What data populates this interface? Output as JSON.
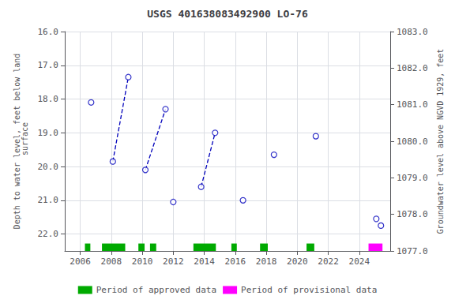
{
  "chart_data": {
    "type": "scatter",
    "title": "USGS 401638083492900 LO-76",
    "ylabel": "Depth to water level, feet below land\n surface",
    "y2label": "Groundwater level above NGVD 1929, feet",
    "x": [
      2006.7,
      2008.1,
      2009.1,
      2010.2,
      2011.5,
      2012.0,
      2013.8,
      2014.7,
      2016.5,
      2018.5,
      2021.2,
      2025.1,
      2025.4
    ],
    "xlim": [
      2005,
      2026
    ],
    "xticks": [
      2006,
      2008,
      2010,
      2012,
      2014,
      2016,
      2018,
      2020,
      2022,
      2024
    ],
    "ylim": [
      22.5,
      16.0
    ],
    "yticks": [
      {
        "value": 16.0,
        "label": "16.0"
      },
      {
        "value": 17.0,
        "label": "17.0"
      },
      {
        "value": 18.0,
        "label": "18.0"
      },
      {
        "value": 19.0,
        "label": "19.0"
      },
      {
        "value": 20.0,
        "label": "20.0"
      },
      {
        "value": 21.0,
        "label": "21.0"
      },
      {
        "value": 22.0,
        "label": "22.0"
      }
    ],
    "y2lim": [
      1077.0,
      1083.0
    ],
    "y2ticks": [
      {
        "value": 1077.0,
        "label": "1077.0"
      },
      {
        "value": 1078.0,
        "label": "1078.0"
      },
      {
        "value": 1079.0,
        "label": "1079.0"
      },
      {
        "value": 1080.0,
        "label": "1080.0"
      },
      {
        "value": 1081.0,
        "label": "1081.0"
      },
      {
        "value": 1082.0,
        "label": "1082.0"
      },
      {
        "value": 1083.0,
        "label": "1083.0"
      }
    ],
    "grid": true,
    "legend": "bottom",
    "series": [
      {
        "type": "scatter",
        "color": "#0000bb",
        "marker": "circle",
        "line_style": "dashed",
        "values": [
          18.1,
          19.85,
          17.35,
          20.1,
          18.3,
          21.05,
          20.6,
          19.0,
          21.0,
          19.65,
          19.1,
          21.55,
          21.75
        ],
        "segments": [
          [
            1,
            2
          ],
          [
            3,
            4
          ],
          [
            6,
            7
          ]
        ]
      },
      {
        "name": "Period of approved data",
        "type": "band",
        "color": "#00aa00",
        "periods": [
          [
            2006.3,
            2006.65
          ],
          [
            2007.4,
            2008.9
          ],
          [
            2009.75,
            2010.15
          ],
          [
            2010.5,
            2010.9
          ],
          [
            2013.3,
            2014.75
          ],
          [
            2015.75,
            2016.1
          ],
          [
            2017.6,
            2018.1
          ],
          [
            2020.6,
            2021.1
          ]
        ],
        "band": [
          22.28,
          22.5
        ]
      },
      {
        "name": "Period of provisional data",
        "type": "band",
        "color": "#ff00ff",
        "periods": [
          [
            2024.6,
            2025.5
          ]
        ],
        "band": [
          22.28,
          22.5
        ]
      }
    ]
  }
}
